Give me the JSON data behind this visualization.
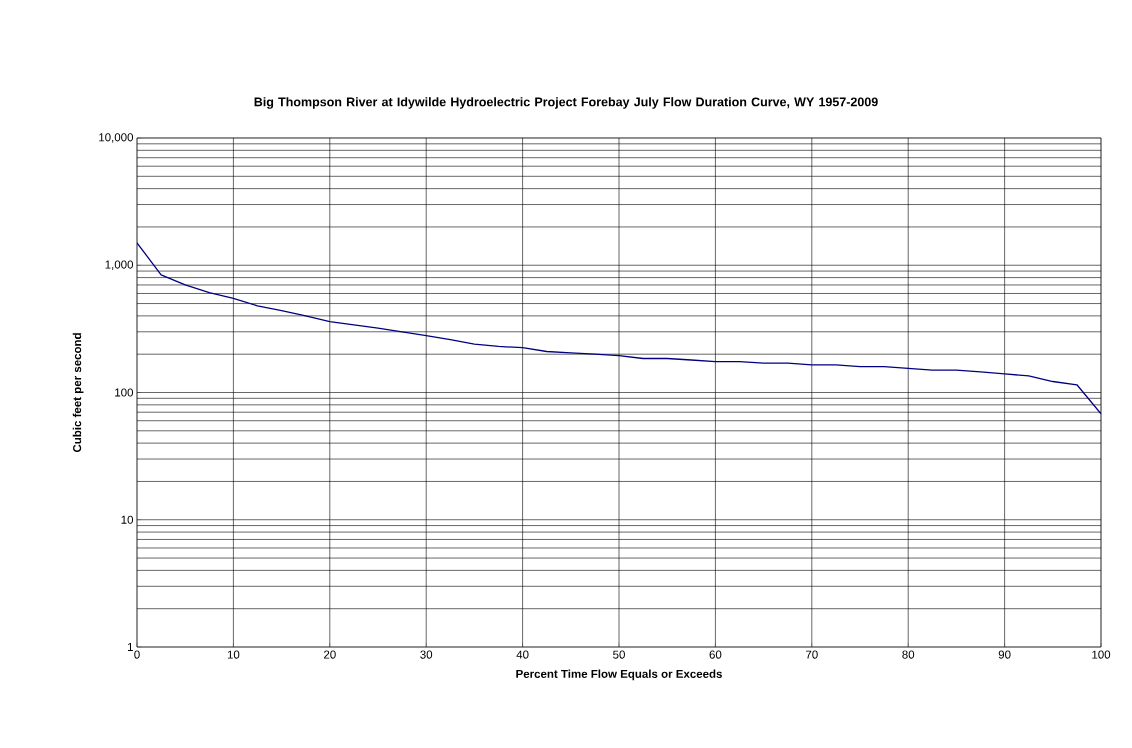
{
  "chart_data": {
    "type": "line",
    "title": "Big Thompson River at Idywilde Hydroelectric Project Forebay July Flow Duration Curve, WY 1957-2009",
    "xlabel": "Percent Time Flow Equals or Exceeds",
    "ylabel": "Cubic feet per second",
    "log": "y",
    "grid": true,
    "marker": "none",
    "line_style": "solid",
    "x": [
      0,
      2.5,
      5,
      7.5,
      10,
      12.5,
      15,
      17.5,
      20,
      22.5,
      25,
      27.5,
      30,
      32.5,
      35,
      37.5,
      40,
      42.5,
      45,
      47.5,
      50,
      52.5,
      55,
      57.5,
      60,
      62.5,
      65,
      67.5,
      70,
      72.5,
      75,
      77.5,
      80,
      82.5,
      85,
      87.5,
      90,
      92.5,
      95,
      97.5,
      100
    ],
    "series": [
      {
        "color": "#000080",
        "values": [
          1500,
          840,
          700,
          610,
          550,
          480,
          440,
          400,
          360,
          340,
          320,
          300,
          280,
          260,
          240,
          230,
          225,
          210,
          205,
          200,
          195,
          185,
          185,
          180,
          175,
          175,
          170,
          170,
          165,
          165,
          160,
          160,
          155,
          150,
          150,
          145,
          140,
          135,
          122,
          115,
          68
        ]
      }
    ],
    "xlim": [
      0,
      100
    ],
    "xticks": [
      0,
      10,
      20,
      30,
      40,
      50,
      60,
      70,
      80,
      90,
      100
    ],
    "ylim": [
      1,
      10000
    ],
    "yticks": [
      1,
      10,
      100,
      {
        "value": 1000,
        "label": "1,000"
      },
      {
        "value": 10000,
        "label": "10,000"
      }
    ]
  }
}
